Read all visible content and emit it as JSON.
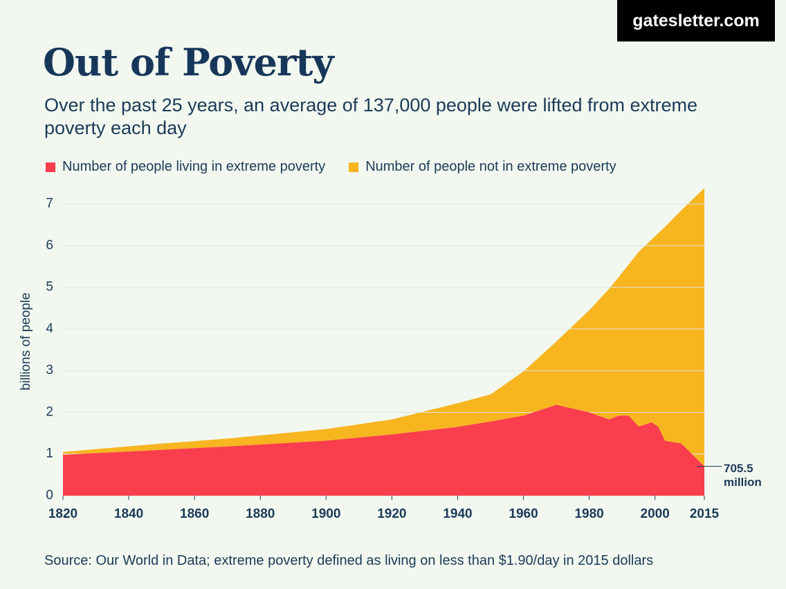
{
  "brand": "gatesletter.com",
  "chart_data": {
    "type": "stacked_area",
    "title": "Out of Poverty",
    "subtitle": "Over the past 25 years, an average of 137,000 people were lifted from extreme poverty each day",
    "y_label": "billions of people",
    "source": "Source: Our World in Data; extreme poverty defined as living on less than $1.90/day in 2015 dollars",
    "annotation": "705.5 million",
    "x": [
      1820,
      1850,
      1870,
      1900,
      1920,
      1940,
      1950,
      1960,
      1970,
      1980,
      1986,
      1989,
      1992,
      1995,
      1999,
      2001,
      2003,
      2008,
      2015
    ],
    "series": [
      {
        "name": "Number of people living in extreme poverty",
        "color": "#f93e4d",
        "values": [
          0.98,
          1.1,
          1.18,
          1.32,
          1.47,
          1.65,
          1.78,
          1.92,
          2.18,
          2.0,
          1.83,
          1.92,
          1.92,
          1.66,
          1.76,
          1.65,
          1.32,
          1.25,
          0.7055
        ]
      },
      {
        "name": "Number of people not in extreme poverty",
        "color": "#f7b520",
        "values": [
          0.07,
          0.15,
          0.19,
          0.28,
          0.36,
          0.57,
          0.65,
          1.06,
          1.52,
          2.45,
          3.13,
          3.33,
          3.63,
          4.19,
          4.39,
          4.65,
          5.13,
          5.6,
          6.6745
        ]
      }
    ],
    "xlim": [
      1820,
      2015
    ],
    "xticks": [
      1820,
      1840,
      1860,
      1880,
      1900,
      1920,
      1940,
      1960,
      1980,
      2000,
      2015
    ],
    "ylim": [
      0,
      7.4
    ],
    "yticks": [
      0,
      1,
      2,
      3,
      4,
      5,
      6,
      7
    ],
    "grid": true
  }
}
